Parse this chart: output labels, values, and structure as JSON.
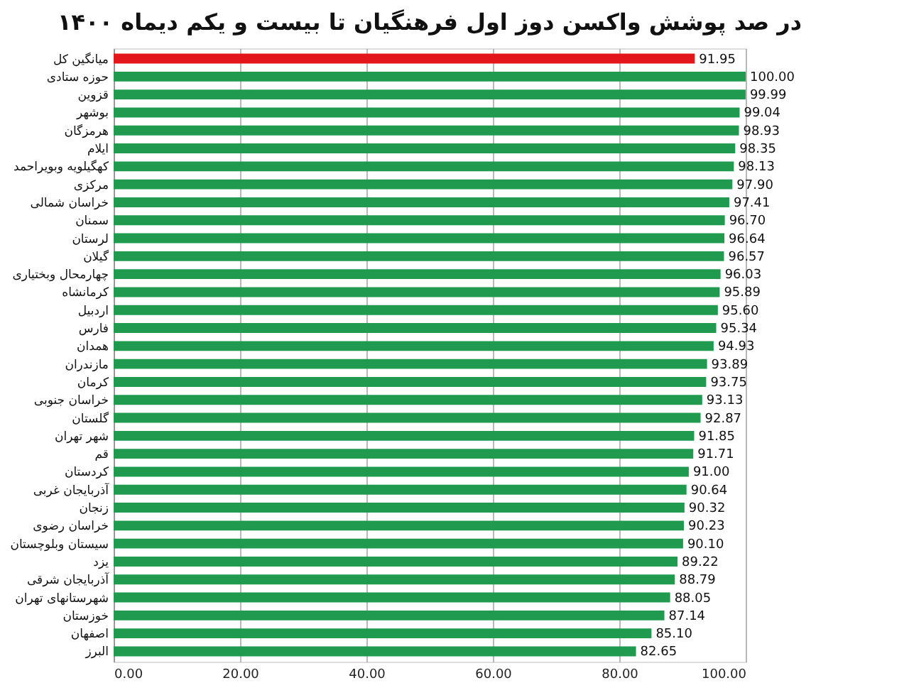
{
  "chart_data": {
    "type": "bar",
    "orientation": "horizontal",
    "title": "در صد پوشش واکسن دوز اول فرهنگیان تا بیست و یکم دیماه ۱۴۰۰",
    "categories": [
      "میانگین کل",
      "حوزه ستادی",
      "قزوین",
      "بوشهر",
      "هرمزگان",
      "ایلام",
      "کهگیلویه وبویراحمد",
      "مرکزی",
      "خراسان شمالی",
      "سمنان",
      "لرستان",
      "گیلان",
      "چهارمحال وبختیاری",
      "کرمانشاه",
      "اردبیل",
      "فارس",
      "همدان",
      "مازندران",
      "کرمان",
      "خراسان جنوبی",
      "گلستان",
      "شهر تهران",
      "قم",
      "کردستان",
      "آذربایجان غربی",
      "زنجان",
      "خراسان رضوی",
      "سیستان وبلوچستان",
      "یزد",
      "آذربایجان شرقی",
      "شهرستانهای تهران",
      "خوزستان",
      "اصفهان",
      "البرز"
    ],
    "values": [
      91.95,
      100.0,
      99.99,
      99.04,
      98.93,
      98.35,
      98.13,
      97.9,
      97.41,
      96.7,
      96.64,
      96.57,
      96.03,
      95.89,
      95.6,
      95.34,
      94.93,
      93.89,
      93.75,
      93.13,
      92.87,
      91.85,
      91.71,
      91.0,
      90.64,
      90.32,
      90.23,
      90.1,
      89.22,
      88.79,
      88.05,
      87.14,
      85.1,
      82.65
    ],
    "value_labels": [
      "91.95",
      "100.00",
      "99.99",
      "99.04",
      "98.93",
      "98.35",
      "98.13",
      "97.90",
      "97.41",
      "96.70",
      "96.64",
      "96.57",
      "96.03",
      "95.89",
      "95.60",
      "95.34",
      "94.93",
      "93.89",
      "93.75",
      "93.13",
      "92.87",
      "91.85",
      "91.71",
      "91.00",
      "90.64",
      "90.32",
      "90.23",
      "90.10",
      "89.22",
      "88.79",
      "88.05",
      "87.14",
      "85.10",
      "82.65"
    ],
    "colors": [
      "#e3161c",
      "#1f9a4e",
      "#1f9a4e",
      "#1f9a4e",
      "#1f9a4e",
      "#1f9a4e",
      "#1f9a4e",
      "#1f9a4e",
      "#1f9a4e",
      "#1f9a4e",
      "#1f9a4e",
      "#1f9a4e",
      "#1f9a4e",
      "#1f9a4e",
      "#1f9a4e",
      "#1f9a4e",
      "#1f9a4e",
      "#1f9a4e",
      "#1f9a4e",
      "#1f9a4e",
      "#1f9a4e",
      "#1f9a4e",
      "#1f9a4e",
      "#1f9a4e",
      "#1f9a4e",
      "#1f9a4e",
      "#1f9a4e",
      "#1f9a4e",
      "#1f9a4e",
      "#1f9a4e",
      "#1f9a4e",
      "#1f9a4e",
      "#1f9a4e",
      "#1f9a4e"
    ],
    "xlim": [
      0,
      100
    ],
    "xticks": [
      {
        "value": 0,
        "label": "0.00"
      },
      {
        "value": 20,
        "label": "20.00"
      },
      {
        "value": 40,
        "label": "40.00"
      },
      {
        "value": 60,
        "label": "60.00"
      },
      {
        "value": 80,
        "label": "80.00"
      },
      {
        "value": 100,
        "label": "100.00"
      }
    ],
    "grid": "x"
  }
}
